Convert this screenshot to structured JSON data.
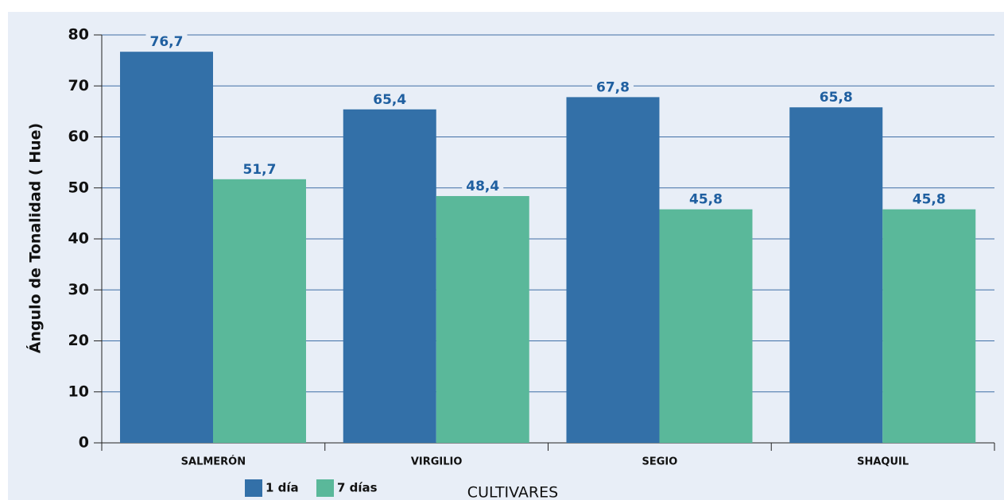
{
  "chart_data": {
    "type": "bar",
    "categories": [
      "SALMERÓN",
      "VIRGILIO",
      "SEGIO",
      "SHAQUIL"
    ],
    "series": [
      {
        "name": "1 día",
        "color": "#3370a8",
        "values": [
          76.7,
          65.4,
          67.8,
          65.8
        ],
        "value_labels": [
          "76,7",
          "65,4",
          "67,8",
          "65,8"
        ]
      },
      {
        "name": "7 días",
        "color": "#5ab89a",
        "values": [
          51.7,
          48.4,
          45.8,
          45.8
        ],
        "value_labels": [
          "51,7",
          "48,4",
          "45,8",
          "45,8"
        ]
      }
    ],
    "y_label": "Ángulo de Tonalidad ( Hue)",
    "x_label": "CULTIVARES",
    "ylim": [
      0,
      80
    ],
    "yticks": [
      0,
      10,
      20,
      30,
      40,
      50,
      60,
      70,
      80
    ],
    "grid": true,
    "legend": "bottom"
  }
}
